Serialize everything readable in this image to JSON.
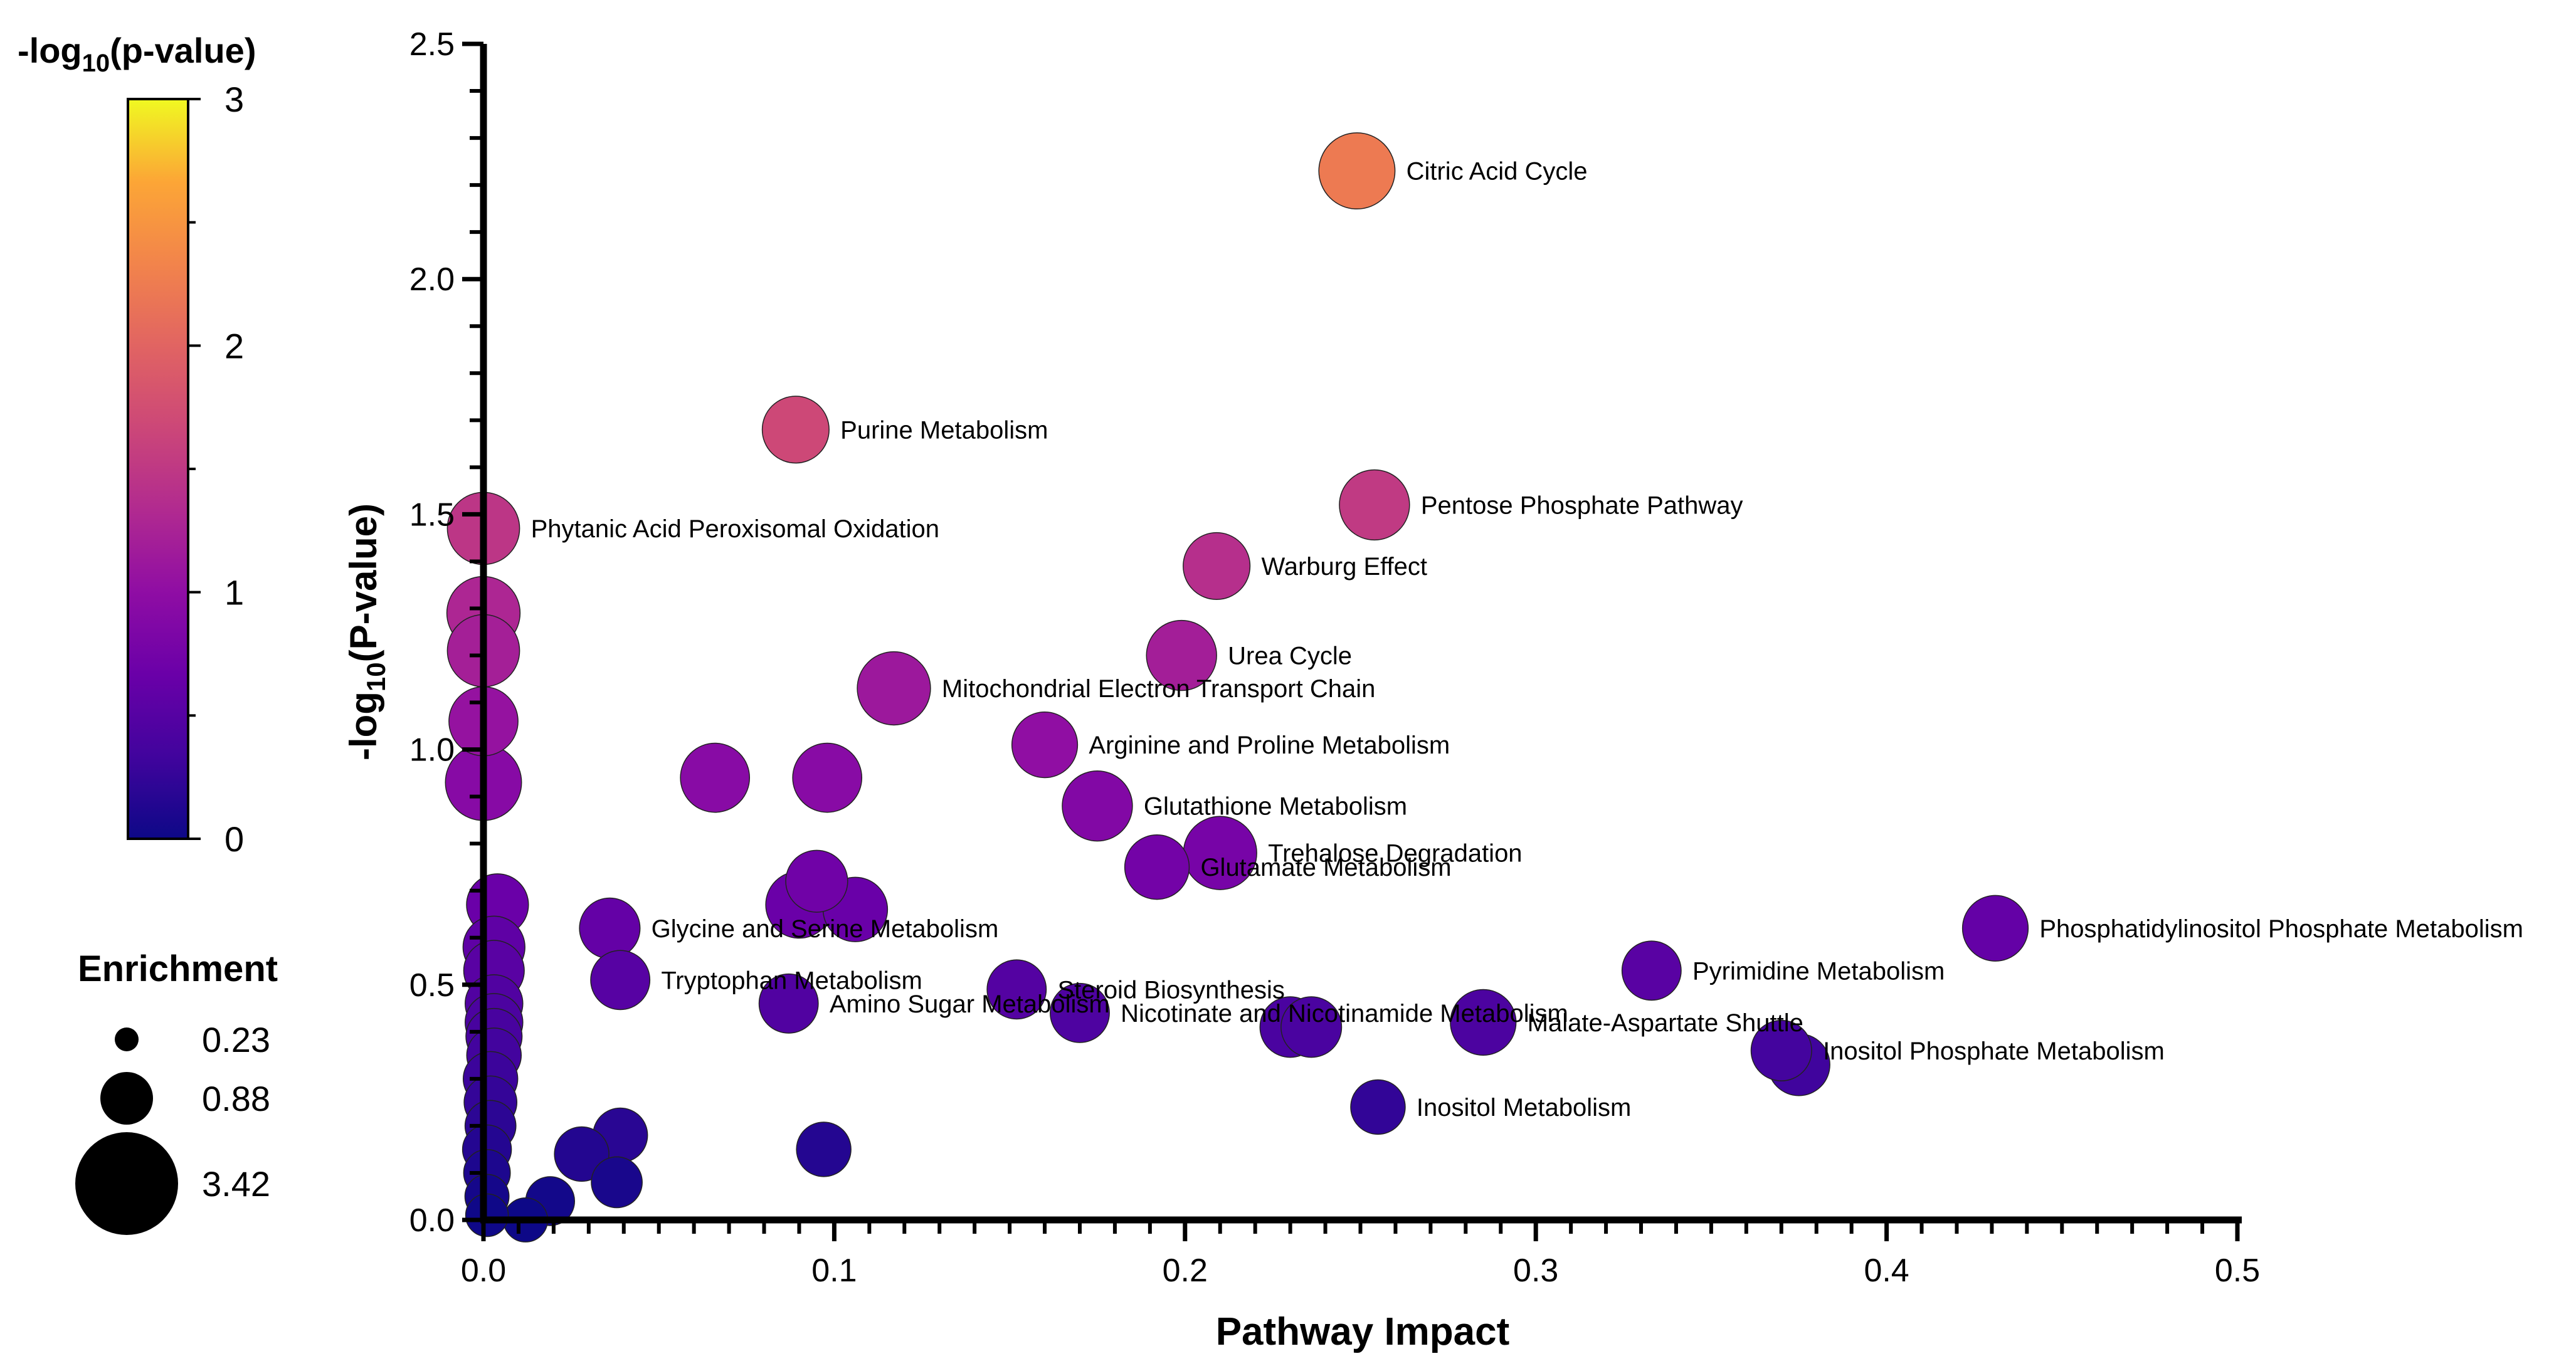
{
  "chart_data": {
    "type": "scatter",
    "title": "",
    "xlabel": "Pathway Impact",
    "ylabel_main": "-log",
    "ylabel_sub": "10",
    "ylabel_tail": "(P-value)",
    "xlim": [
      0,
      0.5
    ],
    "ylim": [
      0,
      2.5
    ],
    "x_ticks": [
      0,
      0.1,
      0.2,
      0.3,
      0.4,
      0.5
    ],
    "x_tick_labels": [
      "0.0",
      "0.1",
      "0.2",
      "0.3",
      "0.4",
      "0.5"
    ],
    "y_ticks": [
      0,
      0.5,
      1.0,
      1.5,
      2.0,
      2.5
    ],
    "y_tick_labels": [
      "0.0",
      "0.5",
      "1.0",
      "1.5",
      "2.0",
      "2.5"
    ],
    "colorbar": {
      "title_main": "-log",
      "title_sub": "10",
      "title_tail": "(p-value)",
      "min": 0,
      "max": 3,
      "tick_values": [
        0,
        1,
        2,
        3
      ],
      "tick_labels": [
        "0",
        "1",
        "2",
        "3"
      ],
      "colormap": "plasma"
    },
    "size_legend": {
      "title": "Enrichment",
      "entries": [
        {
          "label": "0.23",
          "value": 0.23
        },
        {
          "label": "0.88",
          "value": 0.88
        },
        {
          "label": "3.42",
          "value": 3.42
        }
      ]
    },
    "points": [
      {
        "label": "Citric Acid Cycle",
        "impact": 0.249,
        "neglogp": 2.23,
        "enrichment": 2.6
      },
      {
        "label": "Purine Metabolism",
        "impact": 0.089,
        "neglogp": 1.68,
        "enrichment": 1.7
      },
      {
        "label": "Pentose Phosphate Pathway",
        "impact": 0.254,
        "neglogp": 1.52,
        "enrichment": 2.0
      },
      {
        "label": "Phytanic Acid Peroxisomal Oxidation",
        "impact": 0.0,
        "neglogp": 1.47,
        "enrichment": 2.2
      },
      {
        "label": "Warburg Effect",
        "impact": 0.209,
        "neglogp": 1.39,
        "enrichment": 1.7
      },
      {
        "label": "",
        "impact": 0.0,
        "neglogp": 1.29,
        "enrichment": 2.3
      },
      {
        "label": "",
        "impact": 0.0,
        "neglogp": 1.21,
        "enrichment": 2.2
      },
      {
        "label": "Urea Cycle",
        "impact": 0.199,
        "neglogp": 1.2,
        "enrichment": 2.0
      },
      {
        "label": "Mitochondrial Electron Transport Chain",
        "impact": 0.117,
        "neglogp": 1.13,
        "enrichment": 2.3
      },
      {
        "label": "",
        "impact": 0.0,
        "neglogp": 1.06,
        "enrichment": 1.9
      },
      {
        "label": "Arginine and Proline Metabolism",
        "impact": 0.16,
        "neglogp": 1.01,
        "enrichment": 1.6
      },
      {
        "label": "",
        "impact": 0.066,
        "neglogp": 0.94,
        "enrichment": 1.9
      },
      {
        "label": "",
        "impact": 0.098,
        "neglogp": 0.94,
        "enrichment": 1.9
      },
      {
        "label": "",
        "impact": 0.0,
        "neglogp": 0.93,
        "enrichment": 2.6
      },
      {
        "label": "Glutathione Metabolism",
        "impact": 0.175,
        "neglogp": 0.88,
        "enrichment": 2.0
      },
      {
        "label": "Trehalose Degradation",
        "impact": 0.21,
        "neglogp": 0.78,
        "enrichment": 2.3
      },
      {
        "label": "Glutamate Metabolism",
        "impact": 0.192,
        "neglogp": 0.75,
        "enrichment": 1.5
      },
      {
        "label": "",
        "impact": 0.095,
        "neglogp": 0.72,
        "enrichment": 1.3
      },
      {
        "label": "",
        "impact": 0.09,
        "neglogp": 0.67,
        "enrichment": 1.7
      },
      {
        "label": "",
        "impact": 0.106,
        "neglogp": 0.66,
        "enrichment": 1.5
      },
      {
        "label": "",
        "impact": 0.004,
        "neglogp": 0.67,
        "enrichment": 1.3
      },
      {
        "label": "Phosphatidylinositol Phosphate Metabolism",
        "impact": 0.431,
        "neglogp": 0.62,
        "enrichment": 1.6
      },
      {
        "label": "Glycine and Serine Metabolism",
        "impact": 0.036,
        "neglogp": 0.62,
        "enrichment": 1.2
      },
      {
        "label": "",
        "impact": 0.003,
        "neglogp": 0.58,
        "enrichment": 1.3
      },
      {
        "label": "Pyrimidine Metabolism",
        "impact": 0.333,
        "neglogp": 0.53,
        "enrichment": 1.1
      },
      {
        "label": "",
        "impact": 0.003,
        "neglogp": 0.53,
        "enrichment": 1.2
      },
      {
        "label": "Tryptophan Metabolism",
        "impact": 0.039,
        "neglogp": 0.51,
        "enrichment": 1.1
      },
      {
        "label": "Steroid Biosynthesis",
        "impact": 0.152,
        "neglogp": 0.49,
        "enrichment": 1.1
      },
      {
        "label": "Amino Sugar Metabolism",
        "impact": 0.087,
        "neglogp": 0.46,
        "enrichment": 1.1
      },
      {
        "label": "",
        "impact": 0.003,
        "neglogp": 0.46,
        "enrichment": 1.0
      },
      {
        "label": "Nicotinate and Nicotinamide Metabolism",
        "impact": 0.17,
        "neglogp": 0.44,
        "enrichment": 1.1
      },
      {
        "label": "",
        "impact": 0.003,
        "neglogp": 0.42,
        "enrichment": 1.0
      },
      {
        "label": "Malate-Aspartate Shuttle",
        "impact": 0.285,
        "neglogp": 0.42,
        "enrichment": 1.6
      },
      {
        "label": "",
        "impact": 0.23,
        "neglogp": 0.41,
        "enrichment": 1.2
      },
      {
        "label": "",
        "impact": 0.236,
        "neglogp": 0.41,
        "enrichment": 1.2
      },
      {
        "label": "",
        "impact": 0.003,
        "neglogp": 0.39,
        "enrichment": 0.9
      },
      {
        "label": "Inositol Phosphate Metabolism",
        "impact": 0.37,
        "neglogp": 0.36,
        "enrichment": 1.2
      },
      {
        "label": "",
        "impact": 0.375,
        "neglogp": 0.33,
        "enrichment": 1.3
      },
      {
        "label": "",
        "impact": 0.003,
        "neglogp": 0.35,
        "enrichment": 0.8
      },
      {
        "label": "",
        "impact": 0.002,
        "neglogp": 0.3,
        "enrichment": 0.8
      },
      {
        "label": "Inositol Metabolism",
        "impact": 0.255,
        "neglogp": 0.24,
        "enrichment": 0.8
      },
      {
        "label": "",
        "impact": 0.002,
        "neglogp": 0.25,
        "enrichment": 0.7
      },
      {
        "label": "",
        "impact": 0.002,
        "neglogp": 0.2,
        "enrichment": 0.6
      },
      {
        "label": "",
        "impact": 0.039,
        "neglogp": 0.18,
        "enrichment": 0.8
      },
      {
        "label": "",
        "impact": 0.028,
        "neglogp": 0.14,
        "enrichment": 0.8
      },
      {
        "label": "",
        "impact": 0.097,
        "neglogp": 0.15,
        "enrichment": 0.8
      },
      {
        "label": "",
        "impact": 0.001,
        "neglogp": 0.15,
        "enrichment": 0.5
      },
      {
        "label": "",
        "impact": 0.038,
        "neglogp": 0.08,
        "enrichment": 0.6
      },
      {
        "label": "",
        "impact": 0.001,
        "neglogp": 0.1,
        "enrichment": 0.4
      },
      {
        "label": "",
        "impact": 0.019,
        "neglogp": 0.04,
        "enrichment": 0.5
      },
      {
        "label": "",
        "impact": 0.001,
        "neglogp": 0.05,
        "enrichment": 0.3
      },
      {
        "label": "",
        "impact": 0.012,
        "neglogp": 0.0,
        "enrichment": 0.3
      },
      {
        "label": "",
        "impact": 0.001,
        "neglogp": 0.01,
        "enrichment": 0.25
      }
    ]
  }
}
